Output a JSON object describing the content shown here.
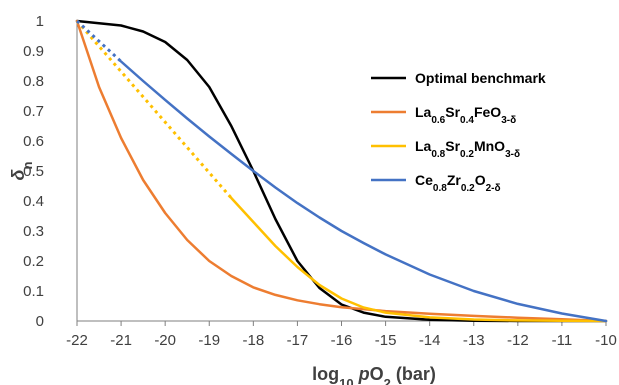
{
  "chart_data": {
    "type": "line",
    "xlabel": "log10 pO2 (bar)",
    "ylabel": "δn",
    "xlim": [
      -22,
      -10
    ],
    "ylim": [
      0,
      1
    ],
    "x_ticks": [
      "-22",
      "-21",
      "-20",
      "-19",
      "-18",
      "-17",
      "-16",
      "-15",
      "-14",
      "-13",
      "-12",
      "-11",
      "-10"
    ],
    "y_ticks": [
      "0",
      "0.1",
      "0.2",
      "0.3",
      "0.4",
      "0.5",
      "0.6",
      "0.7",
      "0.8",
      "0.9",
      "1"
    ],
    "grid": false,
    "legend_position": "right",
    "series": [
      {
        "name": "Optimal benchmark",
        "color": "#000000",
        "style": "solid",
        "x": [
          -22,
          -21,
          -20.5,
          -20,
          -19.5,
          -19,
          -18.5,
          -18,
          -17.5,
          -17,
          -16.5,
          -16,
          -15.5,
          -15,
          -14,
          -13,
          -12,
          -11,
          -10
        ],
        "y": [
          1.0,
          0.985,
          0.965,
          0.93,
          0.87,
          0.78,
          0.65,
          0.5,
          0.34,
          0.2,
          0.11,
          0.055,
          0.028,
          0.014,
          0.004,
          0.001,
          0.0,
          0.0,
          0.0
        ]
      },
      {
        "name": "La0.6Sr0.4FeO3-δ",
        "color": "#ED7D31",
        "style": "solid",
        "x": [
          -22,
          -21.5,
          -21,
          -20.5,
          -20,
          -19.5,
          -19,
          -18.5,
          -18,
          -17.5,
          -17,
          -16.5,
          -16,
          -15,
          -14,
          -13,
          -12,
          -11,
          -10
        ],
        "y": [
          1.0,
          0.78,
          0.61,
          0.47,
          0.36,
          0.27,
          0.2,
          0.15,
          0.112,
          0.087,
          0.069,
          0.056,
          0.046,
          0.033,
          0.024,
          0.017,
          0.011,
          0.006,
          0.0
        ]
      },
      {
        "name": "La0.8Sr0.2MnO3-δ",
        "color": "#FFC000",
        "style": "solid",
        "x": [
          -18.5,
          -18,
          -17.5,
          -17,
          -16.5,
          -16,
          -15.5,
          -15,
          -14,
          -13,
          -12,
          -11,
          -10
        ],
        "y": [
          0.41,
          0.33,
          0.25,
          0.18,
          0.12,
          0.075,
          0.045,
          0.028,
          0.012,
          0.005,
          0.002,
          0.001,
          0.0
        ]
      },
      {
        "name": "",
        "color": "#FFC000",
        "style": "dotted",
        "x": [
          -22,
          -18.5
        ],
        "y": [
          1.0,
          0.41
        ]
      },
      {
        "name": "Ce0.8Zr0.2O2-δ",
        "color": "#4472C4",
        "style": "solid",
        "x": [
          -21,
          -20.5,
          -20,
          -19.5,
          -19,
          -18.5,
          -18,
          -17.5,
          -17,
          -16.5,
          -16,
          -15.5,
          -15,
          -14,
          -13,
          -12,
          -11,
          -10
        ],
        "y": [
          0.865,
          0.8,
          0.737,
          0.675,
          0.615,
          0.557,
          0.5,
          0.445,
          0.393,
          0.345,
          0.3,
          0.26,
          0.222,
          0.155,
          0.1,
          0.057,
          0.025,
          0.0
        ]
      },
      {
        "name": "",
        "color": "#4472C4",
        "style": "dotted",
        "x": [
          -22,
          -21
        ],
        "y": [
          1.0,
          0.865
        ]
      }
    ],
    "legend": [
      {
        "base": "Optimal benchmark",
        "parts": [],
        "color": "#000000"
      },
      {
        "base": "",
        "parts": [
          [
            "La",
            ""
          ],
          [
            "0.6",
            "sub"
          ],
          [
            "Sr",
            ""
          ],
          [
            "0.4",
            "sub"
          ],
          [
            "FeO",
            ""
          ],
          [
            "3-δ",
            "sub"
          ]
        ],
        "color": "#ED7D31"
      },
      {
        "base": "",
        "parts": [
          [
            "La",
            ""
          ],
          [
            "0.8",
            "sub"
          ],
          [
            "Sr",
            ""
          ],
          [
            "0.2",
            "sub"
          ],
          [
            "MnO",
            ""
          ],
          [
            "3-δ",
            "sub"
          ]
        ],
        "color": "#FFC000"
      },
      {
        "base": "",
        "parts": [
          [
            "Ce",
            ""
          ],
          [
            "0.8",
            "sub"
          ],
          [
            "Zr",
            ""
          ],
          [
            "0.2",
            "sub"
          ],
          [
            "O",
            ""
          ],
          [
            "2-δ",
            "sub"
          ]
        ],
        "color": "#4472C4"
      }
    ]
  }
}
